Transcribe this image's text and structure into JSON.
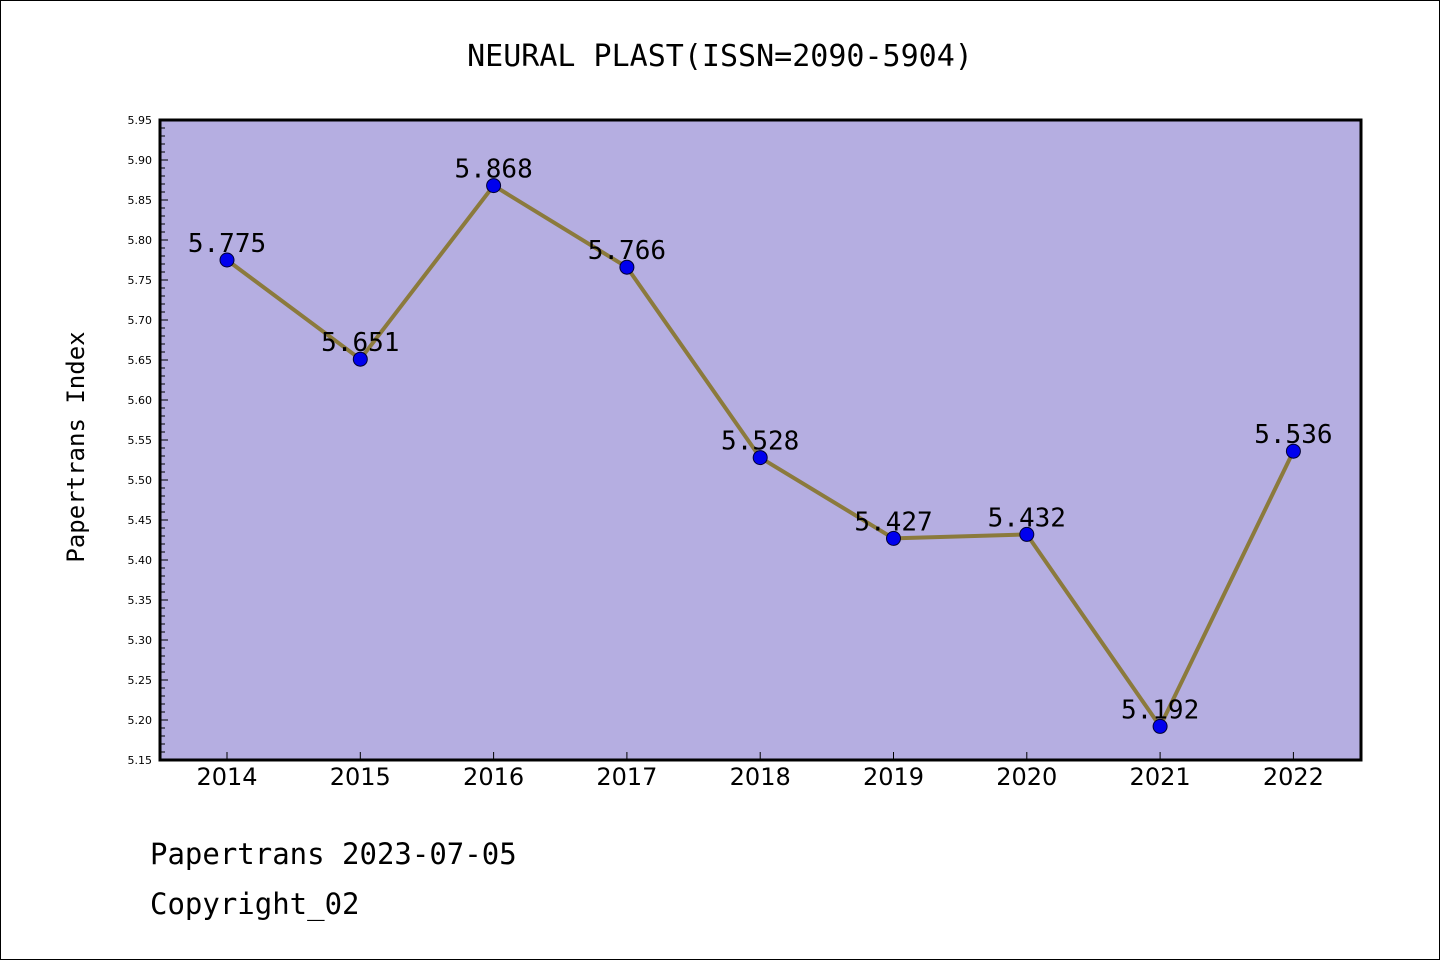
{
  "chart_data": {
    "type": "line",
    "title": "NEURAL PLAST(ISSN=2090-5904)",
    "xlabel": "",
    "ylabel": "Papertrans Index",
    "categories": [
      "2014",
      "2015",
      "2016",
      "2017",
      "2018",
      "2019",
      "2020",
      "2021",
      "2022"
    ],
    "values": [
      5.775,
      5.651,
      5.868,
      5.766,
      5.528,
      5.427,
      5.432,
      5.192,
      5.536
    ],
    "data_labels": [
      "5.775",
      "5.651",
      "5.868",
      "5.766",
      "5.528",
      "5.427",
      "5.432",
      "5.192",
      "5.536"
    ],
    "ylim": [
      5.15,
      5.95
    ],
    "yticks": [
      "5.15",
      "5.20",
      "5.25",
      "5.30",
      "5.35",
      "5.40",
      "5.45",
      "5.50",
      "5.55",
      "5.60",
      "5.65",
      "5.70",
      "5.75",
      "5.80",
      "5.85",
      "5.90",
      "5.95"
    ],
    "grid": false,
    "legend": "none",
    "colors": {
      "plot_background": "#b5aee1",
      "line": "#8b7a3c",
      "marker": "#0000ee",
      "axis": "#000000"
    }
  },
  "footer": {
    "line1": "Papertrans 2023-07-05",
    "line2": "Copyright_02"
  }
}
